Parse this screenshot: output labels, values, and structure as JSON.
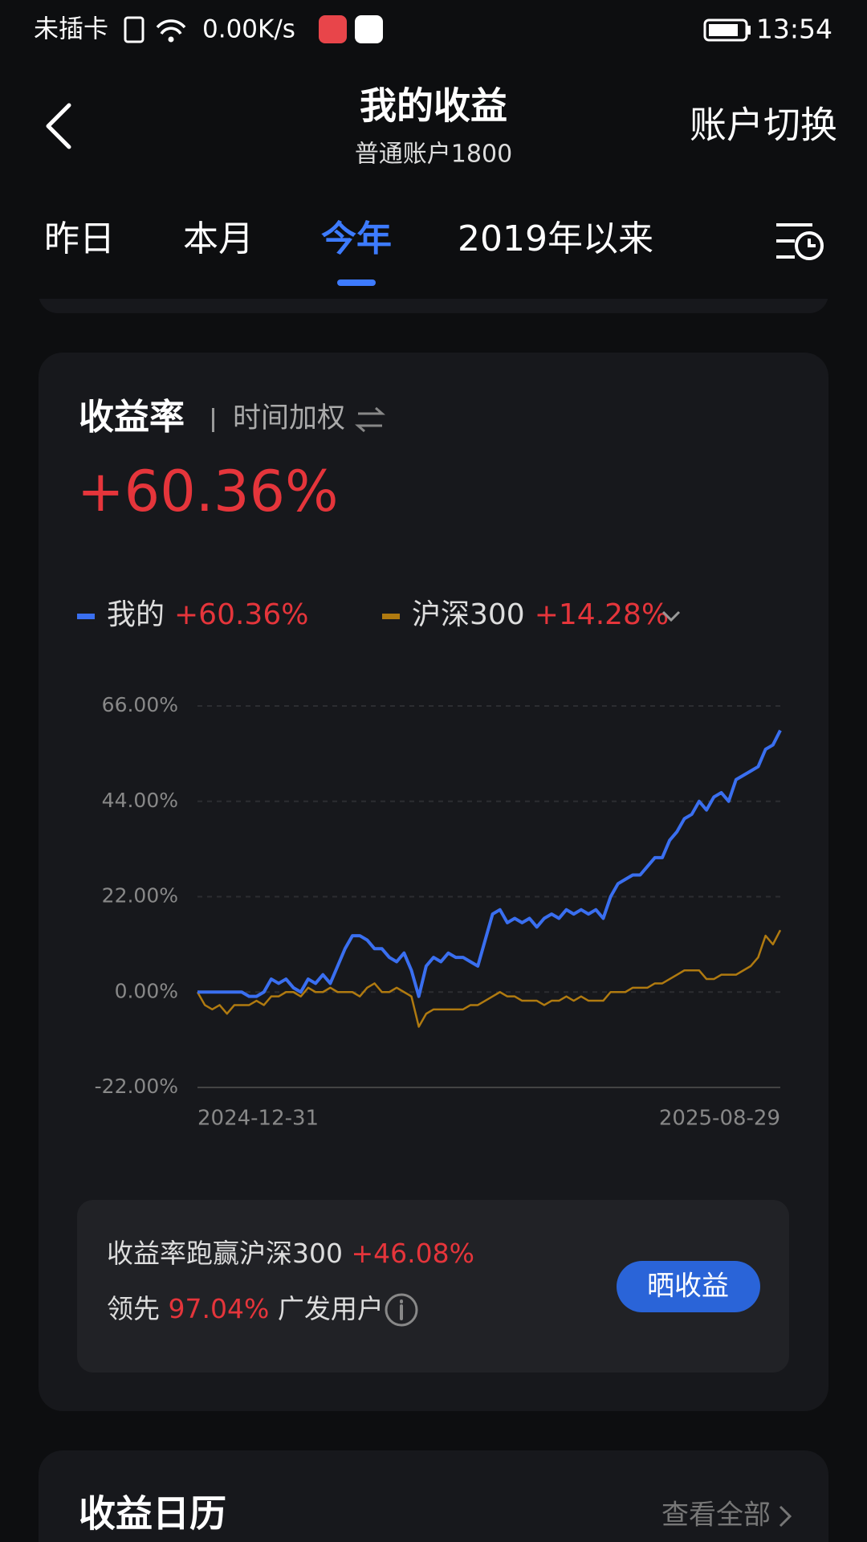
{
  "status_bar": {
    "carrier": "未插卡",
    "speed": "0.00K/s",
    "time": "13:54"
  },
  "header": {
    "title": "我的收益",
    "subtitle": "普通账户1800",
    "action": "账户切换"
  },
  "tabs": [
    "昨日",
    "本月",
    "今年",
    "2019年以来"
  ],
  "active_tab": 2,
  "card": {
    "title": "收益率",
    "method": "时间加权",
    "total": "+60.36%"
  },
  "chart_data": {
    "type": "line",
    "categories": [
      "2024-12-31",
      null,
      null,
      null,
      null,
      null,
      null,
      null,
      null,
      null,
      null,
      null,
      null,
      null,
      null,
      null,
      null,
      null,
      null,
      null,
      null,
      null,
      null,
      null,
      null,
      null,
      null,
      null,
      null,
      null,
      null,
      null,
      null,
      null,
      null,
      null,
      null,
      null,
      null,
      null,
      null,
      null,
      null,
      null,
      null,
      null,
      null,
      null,
      null,
      null,
      null,
      null,
      null,
      null,
      null,
      null,
      null,
      null,
      null,
      null,
      null,
      null,
      null,
      null,
      null,
      null,
      null,
      null,
      null,
      null,
      null,
      null,
      null,
      null,
      null,
      null,
      null,
      null,
      null,
      "2025-08-29"
    ],
    "series": [
      {
        "name": "我的",
        "summary": "+60.36%",
        "color": "#3a6ff0",
        "values": [
          0,
          0,
          0,
          0,
          0,
          0,
          0,
          -1,
          -1,
          0,
          3,
          2,
          3,
          1,
          0,
          3,
          2,
          4,
          2,
          6,
          10,
          13,
          13,
          12,
          10,
          10,
          8,
          7,
          9,
          5,
          -1,
          6,
          8,
          7,
          9,
          8,
          8,
          7,
          6,
          12,
          18,
          19,
          16,
          17,
          16,
          17,
          15,
          17,
          18,
          17,
          19,
          18,
          19,
          18,
          19,
          17,
          22,
          25,
          26,
          27,
          27,
          29,
          31,
          31,
          35,
          37,
          40,
          41,
          44,
          42,
          45,
          46,
          44,
          49,
          50,
          51,
          52,
          56,
          57,
          60.36
        ]
      },
      {
        "name": "沪深300",
        "summary": "+14.28%",
        "color": "#b07a10",
        "values": [
          0,
          -3,
          -4,
          -3,
          -5,
          -3,
          -3,
          -3,
          -2,
          -3,
          -1,
          -1,
          0,
          0,
          -1,
          1,
          0,
          0,
          1,
          0,
          0,
          0,
          -1,
          1,
          2,
          0,
          0,
          1,
          0,
          -1,
          -8,
          -5,
          -4,
          -4,
          -4,
          -4,
          -4,
          -3,
          -3,
          -2,
          -1,
          0,
          -1,
          -1,
          -2,
          -2,
          -2,
          -3,
          -2,
          -2,
          -1,
          -2,
          -1,
          -2,
          -2,
          -2,
          0,
          0,
          0,
          1,
          1,
          1,
          2,
          2,
          3,
          4,
          5,
          5,
          5,
          3,
          3,
          4,
          4,
          4,
          5,
          6,
          8,
          13,
          11,
          14.28
        ]
      }
    ],
    "ylim": [
      -22,
      66
    ],
    "yticks": [
      {
        "value": -22,
        "label": "-22.00%"
      },
      {
        "value": 0,
        "label": "0.00%"
      },
      {
        "value": 22,
        "label": "22.00%"
      },
      {
        "value": 44,
        "label": "44.00%"
      },
      {
        "value": 66,
        "label": "66.00%"
      }
    ],
    "grid": true
  },
  "summary": {
    "beat_text": "收益率跑赢沪深300",
    "beat_value": "+46.08%",
    "lead_prefix": "领先",
    "lead_value": "97.04%",
    "lead_suffix": "广发用户",
    "share_button": "晒收益"
  },
  "calendar": {
    "title": "收益日历",
    "view_all": "查看全部"
  }
}
